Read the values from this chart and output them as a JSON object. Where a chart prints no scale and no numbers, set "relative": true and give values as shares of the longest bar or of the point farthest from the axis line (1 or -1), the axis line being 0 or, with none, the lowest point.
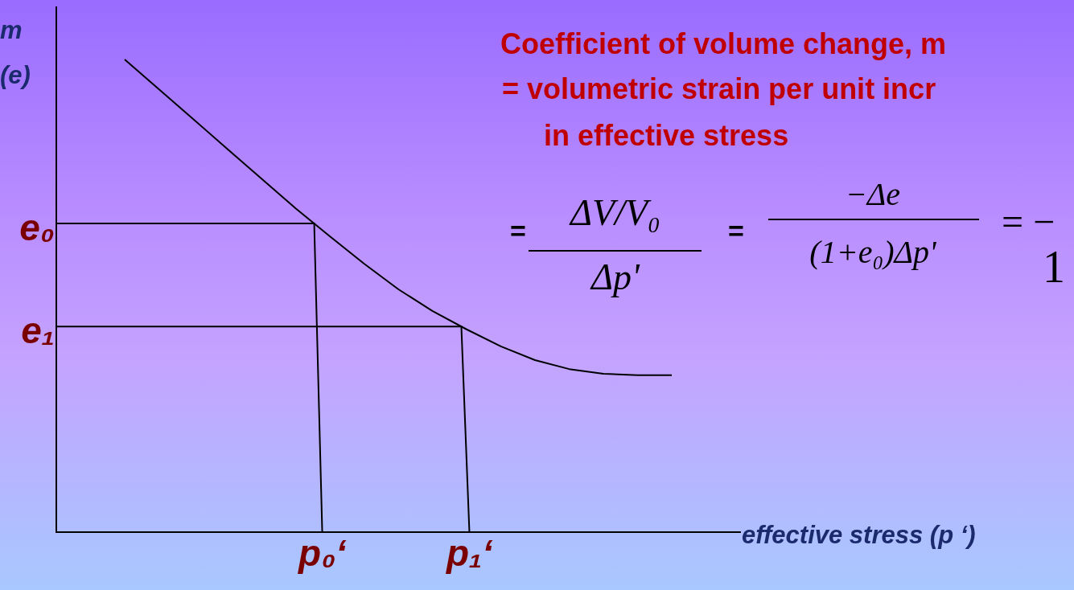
{
  "chart_data": {
    "type": "line",
    "title": "Coefficient of volume change, m",
    "xlabel": "effective stress (p ‘)",
    "ylabel": "m (e)",
    "relative": true,
    "annotations": [
      "= volumetric strain per unit incr",
      "in effective stress",
      "=",
      "ΔV/V₀",
      "Δp'",
      "=",
      "−Δe",
      "(1+e₀)Δp'",
      "= −",
      "1",
      "p₀‘",
      "p₁‘"
    ],
    "categories": [
      null,
      null,
      null,
      null,
      null,
      null,
      null,
      null,
      null,
      null,
      null,
      null,
      null,
      null,
      null,
      null,
      null,
      null,
      null,
      null,
      null
    ],
    "ref_lines": [
      {
        "axis": "y",
        "value": 0.653,
        "label": "e₀",
        "color": "#000000"
      },
      {
        "axis": "y",
        "value": 0.435,
        "label": "e₁",
        "color": "#000000"
      }
    ],
    "marker": "none",
    "line_style": "solid",
    "series": [
      {
        "color": "#000000",
        "values": [
          null,
          null,
          1,
          0.937,
          0.874,
          0.811,
          0.748,
          0.685,
          0.626,
          0.568,
          0.514,
          0.468,
          0.429,
          0.393,
          0.364,
          0.345,
          0.335,
          0.332,
          0.332,
          null,
          null
        ]
      }
    ]
  }
}
